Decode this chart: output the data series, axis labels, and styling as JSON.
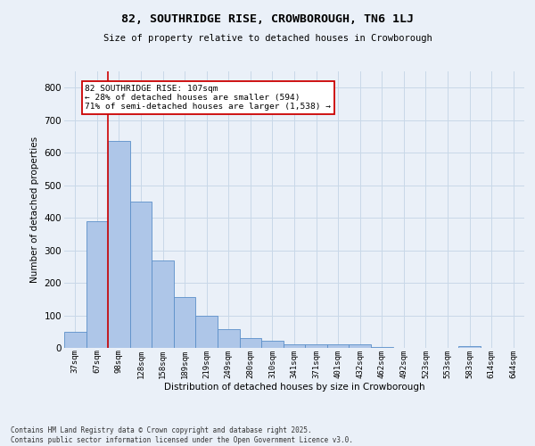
{
  "title_line1": "82, SOUTHRIDGE RISE, CROWBOROUGH, TN6 1LJ",
  "title_line2": "Size of property relative to detached houses in Crowborough",
  "xlabel": "Distribution of detached houses by size in Crowborough",
  "ylabel": "Number of detached properties",
  "categories": [
    "37sqm",
    "67sqm",
    "98sqm",
    "128sqm",
    "158sqm",
    "189sqm",
    "219sqm",
    "249sqm",
    "280sqm",
    "310sqm",
    "341sqm",
    "371sqm",
    "401sqm",
    "432sqm",
    "462sqm",
    "492sqm",
    "523sqm",
    "553sqm",
    "583sqm",
    "614sqm",
    "644sqm"
  ],
  "bar_values": [
    50,
    390,
    635,
    450,
    270,
    155,
    100,
    58,
    30,
    22,
    12,
    11,
    10,
    12,
    4,
    0,
    0,
    0,
    5,
    0,
    0
  ],
  "bar_color": "#aec6e8",
  "bar_edge_color": "#5b8fc9",
  "grid_color": "#c8d8e8",
  "background_color": "#eaf0f8",
  "vline_color": "#cc0000",
  "vline_x_index": 2,
  "annotation_text": "82 SOUTHRIDGE RISE: 107sqm\n← 28% of detached houses are smaller (594)\n71% of semi-detached houses are larger (1,538) →",
  "annotation_box_color": "#ffffff",
  "annotation_box_edge": "#cc0000",
  "ylim": [
    0,
    850
  ],
  "yticks": [
    0,
    100,
    200,
    300,
    400,
    500,
    600,
    700,
    800
  ],
  "footer_line1": "Contains HM Land Registry data © Crown copyright and database right 2025.",
  "footer_line2": "Contains public sector information licensed under the Open Government Licence v3.0."
}
